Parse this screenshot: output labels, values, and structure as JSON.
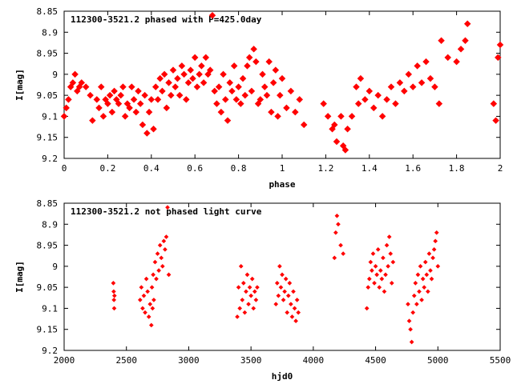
{
  "chart_data": [
    {
      "type": "scatter",
      "title": "112300-3521.2 phased with P=425.0day",
      "xlabel": "phase",
      "ylabel": "I[mag]",
      "xlim": [
        0,
        2
      ],
      "ylim": [
        9.2,
        8.85
      ],
      "xticks": [
        "0",
        "0.2",
        "0.4",
        "0.6",
        "0.8",
        "1",
        "1.2",
        "1.4",
        "1.6",
        "1.8",
        "2"
      ],
      "yticks": [
        "8.85",
        "8.9",
        "8.95",
        "9",
        "9.05",
        "9.1",
        "9.15",
        "9.2"
      ],
      "color": "#ff0000",
      "grid": false,
      "series": [
        {
          "x": [
            0.0,
            0.01,
            0.02,
            0.03,
            0.04,
            0.05,
            0.06,
            0.07,
            0.08,
            0.1,
            0.12,
            0.13,
            0.15,
            0.16,
            0.17,
            0.18,
            0.19,
            0.2,
            0.21,
            0.22,
            0.23,
            0.24,
            0.25,
            0.26,
            0.27,
            0.28,
            0.29,
            0.3,
            0.31,
            0.32,
            0.33,
            0.34,
            0.35,
            0.36,
            0.37,
            0.38,
            0.39,
            0.4,
            0.41,
            0.42,
            0.43,
            0.44,
            0.45,
            0.46,
            0.47,
            0.48,
            0.49,
            0.5,
            0.51,
            0.52,
            0.53,
            0.54,
            0.55,
            0.56,
            0.57,
            0.58,
            0.59,
            0.6,
            0.61,
            0.62,
            0.63,
            0.64,
            0.65,
            0.66,
            0.67,
            0.68,
            0.69,
            0.7,
            0.71,
            0.72,
            0.73,
            0.74,
            0.75,
            0.76,
            0.77,
            0.78,
            0.79,
            0.8,
            0.81,
            0.82,
            0.83,
            0.84,
            0.85,
            0.86,
            0.87,
            0.88,
            0.89,
            0.9,
            0.91,
            0.92,
            0.93,
            0.94,
            0.95,
            0.96,
            0.97,
            0.98,
            0.99,
            1.0,
            1.02,
            1.04,
            1.06,
            1.08,
            1.1,
            1.19,
            1.21,
            1.23,
            1.24,
            1.25,
            1.27,
            1.28,
            1.29,
            1.3,
            1.32,
            1.34,
            1.35,
            1.36,
            1.38,
            1.4,
            1.42,
            1.44,
            1.46,
            1.48,
            1.5,
            1.52,
            1.54,
            1.56,
            1.58,
            1.6,
            1.62,
            1.64,
            1.66,
            1.68,
            1.7,
            1.72,
            1.73,
            1.76,
            1.8,
            1.82,
            1.84,
            1.85,
            1.97,
            1.98,
            1.99,
            2.0
          ],
          "y": [
            9.1,
            9.08,
            9.06,
            9.03,
            9.02,
            9.0,
            9.04,
            9.03,
            9.02,
            9.03,
            9.05,
            9.11,
            9.06,
            9.08,
            9.03,
            9.1,
            9.06,
            9.07,
            9.05,
            9.09,
            9.04,
            9.06,
            9.07,
            9.05,
            9.03,
            9.1,
            9.07,
            9.08,
            9.03,
            9.06,
            9.09,
            9.04,
            9.07,
            9.12,
            9.05,
            9.14,
            9.09,
            9.06,
            9.13,
            9.03,
            9.06,
            9.01,
            9.04,
            9.0,
            9.08,
            9.02,
            9.05,
            8.99,
            9.03,
            9.01,
            9.05,
            8.98,
            9.0,
            9.06,
            9.02,
            8.99,
            9.01,
            8.96,
            9.03,
            9.0,
            8.98,
            9.02,
            8.96,
            9.0,
            8.99,
            8.86,
            9.04,
            9.07,
            9.03,
            9.09,
            9.0,
            9.06,
            9.11,
            9.02,
            9.04,
            8.98,
            9.06,
            9.03,
            9.07,
            9.01,
            9.05,
            8.98,
            8.96,
            9.04,
            8.94,
            8.97,
            9.07,
            9.06,
            9.0,
            9.03,
            9.05,
            8.97,
            9.09,
            9.02,
            8.99,
            9.1,
            9.05,
            9.01,
            9.08,
            9.04,
            9.09,
            9.06,
            9.12,
            9.07,
            9.1,
            9.13,
            9.12,
            9.16,
            9.1,
            9.17,
            9.18,
            9.13,
            9.1,
            9.03,
            9.07,
            9.01,
            9.06,
            9.04,
            9.08,
            9.05,
            9.1,
            9.06,
            9.03,
            9.07,
            9.02,
            9.04,
            9.0,
            9.03,
            8.98,
            9.02,
            8.97,
            9.01,
            9.03,
            9.07,
            8.92,
            8.96,
            8.97,
            8.94,
            8.92,
            8.88,
            9.07,
            9.11,
            8.96,
            8.93
          ]
        }
      ]
    },
    {
      "type": "scatter",
      "title": "112300-3521.2 not phased light curve",
      "xlabel": "hjd0",
      "ylabel": "I[mag]",
      "xlim": [
        2000,
        5500
      ],
      "ylim": [
        9.2,
        8.85
      ],
      "xticks": [
        "2000",
        "2500",
        "3000",
        "3500",
        "4000",
        "4500",
        "5000",
        "5500"
      ],
      "yticks": [
        "8.85",
        "8.9",
        "8.95",
        "9",
        "9.05",
        "9.1",
        "9.15",
        "9.2"
      ],
      "color": "#ff0000",
      "grid": false,
      "series": [
        {
          "x": [
            2395,
            2398,
            2400,
            2402,
            2404,
            2610,
            2620,
            2630,
            2640,
            2650,
            2660,
            2670,
            2680,
            2690,
            2700,
            2705,
            2710,
            2715,
            2720,
            2730,
            2740,
            2750,
            2760,
            2770,
            2780,
            2790,
            2800,
            2810,
            2820,
            2830,
            2840,
            3390,
            3400,
            3410,
            3420,
            3430,
            3440,
            3450,
            3460,
            3470,
            3480,
            3490,
            3500,
            3510,
            3520,
            3530,
            3540,
            3550,
            3700,
            3710,
            3720,
            3730,
            3740,
            3750,
            3760,
            3770,
            3780,
            3790,
            3800,
            3810,
            3820,
            3830,
            3840,
            3850,
            3860,
            3870,
            3880,
            4170,
            4180,
            4190,
            4200,
            4220,
            4240,
            4430,
            4440,
            4450,
            4460,
            4470,
            4480,
            4490,
            4500,
            4510,
            4520,
            4530,
            4540,
            4550,
            4560,
            4570,
            4580,
            4590,
            4600,
            4610,
            4620,
            4630,
            4640,
            4760,
            4770,
            4780,
            4790,
            4800,
            4810,
            4820,
            4830,
            4840,
            4850,
            4860,
            4870,
            4880,
            4890,
            4900,
            4910,
            4920,
            4930,
            4940,
            4950,
            4960,
            4970,
            4980,
            4990,
            5000
          ],
          "y": [
            9.04,
            9.06,
            9.08,
            9.1,
            9.07,
            9.08,
            9.05,
            9.1,
            9.07,
            9.11,
            9.03,
            9.06,
            9.12,
            9.09,
            9.14,
            9.05,
            9.1,
            9.02,
            9.08,
            8.99,
            9.03,
            8.97,
            9.01,
            8.95,
            8.98,
            9.0,
            8.94,
            8.96,
            8.93,
            8.86,
            9.02,
            9.12,
            9.05,
            9.1,
            9.0,
            9.08,
            9.04,
            9.11,
            9.06,
            9.02,
            9.09,
            9.05,
            9.07,
            9.03,
            9.1,
            9.06,
            9.08,
            9.05,
            9.09,
            9.04,
            9.07,
            9.0,
            9.05,
            9.02,
            9.08,
            9.06,
            9.03,
            9.11,
            9.07,
            9.04,
            9.09,
            9.12,
            9.06,
            9.1,
            9.13,
            9.08,
            9.11,
            8.98,
            8.92,
            8.88,
            8.9,
            8.95,
            8.97,
            9.1,
            9.05,
            9.03,
            8.99,
            9.01,
            8.97,
            9.04,
            9.0,
            9.02,
            8.96,
            9.05,
            9.01,
            9.03,
            8.98,
            9.06,
            9.02,
            8.95,
            9.0,
            8.93,
            8.97,
            9.04,
            8.99,
            9.09,
            9.13,
            9.15,
            9.18,
            9.11,
            9.07,
            9.04,
            9.09,
            9.02,
            9.06,
            9.0,
            9.08,
            9.03,
            9.05,
            8.99,
            9.02,
            9.06,
            8.97,
            9.01,
            9.03,
            8.98,
            8.96,
            8.94,
            8.92,
            9.0
          ]
        }
      ]
    }
  ]
}
